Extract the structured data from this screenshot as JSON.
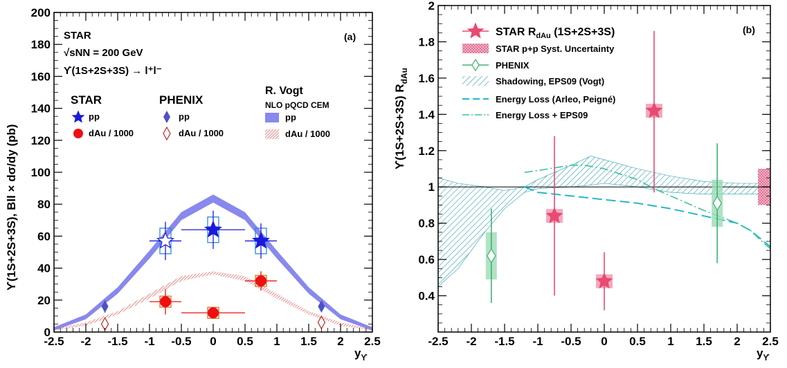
{
  "chart_data": [
    {
      "type": "scatter",
      "panel": "(a)",
      "title_lines": [
        "STAR",
        "√sNN = 200 GeV",
        "ϒ(1S+2S+3S) → l⁺l⁻"
      ],
      "xlabel": "yϒ",
      "ylabel": "ϒ(1S+2S+3S),  Bll × dσ/dy (pb)",
      "xlim": [
        -2.5,
        2.5
      ],
      "ylim": [
        0,
        200
      ],
      "xticks": [
        "-2.5",
        "-2",
        "-1.5",
        "-1",
        "-0.5",
        "0",
        "0.5",
        "1",
        "1.5",
        "2",
        "2.5"
      ],
      "yticks": [
        "0",
        "20",
        "40",
        "60",
        "80",
        "100",
        "120",
        "140",
        "160",
        "180",
        "200"
      ],
      "legend_headers": [
        "STAR",
        "PHENIX",
        "R. Vogt",
        "NLO pQCD CEM"
      ],
      "legend_labels": {
        "star_pp": "pp",
        "star_dau": "dAu / 1000",
        "phenix_pp": "pp",
        "phenix_dau": "dAu / 1000",
        "vogt_pp": "pp",
        "vogt_dau": "dAu / 1000"
      },
      "series": [
        {
          "name": "STAR pp",
          "color": "#1a1adc",
          "points": [
            {
              "x": 0.0,
              "y": 64,
              "xerr": 0.5,
              "yerr": 12
            },
            {
              "x": 0.75,
              "y": 57,
              "xerr": 0.25,
              "yerr": 11
            },
            {
              "x": -0.75,
              "y": 57,
              "xerr": 0.25,
              "yerr": 12,
              "open": true
            }
          ]
        },
        {
          "name": "STAR dAu / 1000",
          "color": "#ee1111",
          "points": [
            {
              "x": 0.0,
              "y": 12,
              "xerr": 0.5,
              "yerr": 1.5
            },
            {
              "x": 0.75,
              "y": 32,
              "xerr": 0.25,
              "yerr": 6
            },
            {
              "x": -0.75,
              "y": 19,
              "xerr": 0.25,
              "yerr": 8
            }
          ]
        },
        {
          "name": "PHENIX pp",
          "color": "#5050c8",
          "points": [
            {
              "x": -1.7,
              "y": 16,
              "yerr": 4
            },
            {
              "x": 1.7,
              "y": 16,
              "yerr": 2
            }
          ]
        },
        {
          "name": "PHENIX dAu / 1000",
          "color": "#cc2222",
          "points": [
            {
              "x": -1.7,
              "y": 5,
              "yerr": 2
            },
            {
              "x": 1.7,
              "y": 6,
              "yerr": 2
            }
          ]
        }
      ],
      "bands": [
        {
          "name": "R. Vogt pp",
          "color": "#8888ee",
          "x": [
            -2.5,
            -2,
            -1.5,
            -1,
            -0.5,
            0,
            0.5,
            1,
            1.5,
            2,
            2.5
          ],
          "low": [
            1,
            8,
            24,
            46,
            70,
            81,
            70,
            46,
            24,
            8,
            1
          ],
          "high": [
            3,
            11,
            28,
            51,
            75,
            86,
            75,
            51,
            28,
            11,
            3
          ]
        },
        {
          "name": "R. Vogt dAu / 1000",
          "color": "#ee7777",
          "x": [
            -2.5,
            -2,
            -1.5,
            -1,
            -0.5,
            0,
            0.5,
            1,
            1.5,
            2,
            2.5
          ],
          "low": [
            1,
            4,
            11,
            21,
            32,
            36,
            32,
            21,
            11,
            4,
            1
          ],
          "high": [
            2,
            6,
            13,
            24,
            35,
            38,
            35,
            24,
            13,
            6,
            2
          ]
        }
      ]
    },
    {
      "type": "scatter",
      "panel": "(b)",
      "xlabel": "yϒ",
      "ylabel": "ϒ(1S+2S+3S) RdAu",
      "xlim": [
        -2.5,
        2.5
      ],
      "ylim": [
        0.2,
        2.0
      ],
      "xticks": [
        "-2.5",
        "-2",
        "-1.5",
        "-1",
        "-0.5",
        "0",
        "0.5",
        "1",
        "1.5",
        "2",
        "2.5"
      ],
      "yticks": [
        "0.4",
        "0.6",
        "0.8",
        "1",
        "1.2",
        "1.4",
        "1.6",
        "1.8",
        "2"
      ],
      "legend": [
        "STAR RdAu (1S+2S+3S)",
        "STAR p+p Syst. Uncertainty",
        "PHENIX",
        "Shadowing, EPS09 (Vogt)",
        "Energy Loss (Arleo, Peigné)",
        "Energy Loss + EPS09"
      ],
      "series": [
        {
          "name": "STAR RdAu (1S+2S+3S)",
          "color": "#e84a72",
          "points": [
            {
              "x": -0.75,
              "y": 0.84,
              "ylo": 0.4,
              "yhi": 1.28
            },
            {
              "x": 0.0,
              "y": 0.48,
              "ylo": 0.32,
              "yhi": 0.64
            },
            {
              "x": 0.75,
              "y": 1.42,
              "ylo": 0.97,
              "yhi": 1.86
            }
          ]
        },
        {
          "name": "PHENIX",
          "color": "#3cb371",
          "points": [
            {
              "x": -1.7,
              "y": 0.62,
              "ylo": 0.36,
              "yhi": 0.88
            },
            {
              "x": 1.7,
              "y": 0.91,
              "ylo": 0.58,
              "yhi": 1.24
            }
          ]
        },
        {
          "name": "Energy Loss (Arleo, Peigné)",
          "color": "#22b8c8",
          "x": [
            -1.2,
            -1.0,
            -0.5,
            0,
            0.5,
            1,
            1.5,
            2,
            2.2,
            2.4,
            2.5
          ],
          "y": [
            1.0,
            0.97,
            0.95,
            0.93,
            0.91,
            0.88,
            0.84,
            0.8,
            0.76,
            0.7,
            0.67
          ]
        },
        {
          "name": "Energy Loss + EPS09",
          "color": "#3cc0a0",
          "x": [
            -1.2,
            -1.0,
            -0.5,
            -0.3,
            0,
            0.5,
            0.75,
            1,
            1.5,
            2,
            2.2,
            2.4,
            2.5
          ],
          "y": [
            1.08,
            1.09,
            1.12,
            1.12,
            1.1,
            1.04,
            0.99,
            0.95,
            0.87,
            0.8,
            0.76,
            0.69,
            0.66
          ]
        }
      ],
      "bands": [
        {
          "name": "Shadowing, EPS09 (Vogt)",
          "color": "#2a9fad",
          "x": [
            -2.5,
            -2.2,
            -1.8,
            -1.5,
            -1.2,
            -1,
            -0.5,
            -0.2,
            0,
            0.5,
            1,
            1.5,
            2,
            2.5
          ],
          "low": [
            0.45,
            0.55,
            0.75,
            0.88,
            0.97,
            0.99,
            1.0,
            1.01,
            1.02,
            1.0,
            0.97,
            0.96,
            0.96,
            0.96
          ],
          "high": [
            1.05,
            1.02,
            1.0,
            0.98,
            1.0,
            1.04,
            1.12,
            1.17,
            1.15,
            1.1,
            1.06,
            1.03,
            1.02,
            1.02
          ]
        }
      ],
      "pp_syst": {
        "x": 2.5,
        "low": 0.9,
        "high": 1.1,
        "color": "#e66a8a"
      }
    }
  ]
}
